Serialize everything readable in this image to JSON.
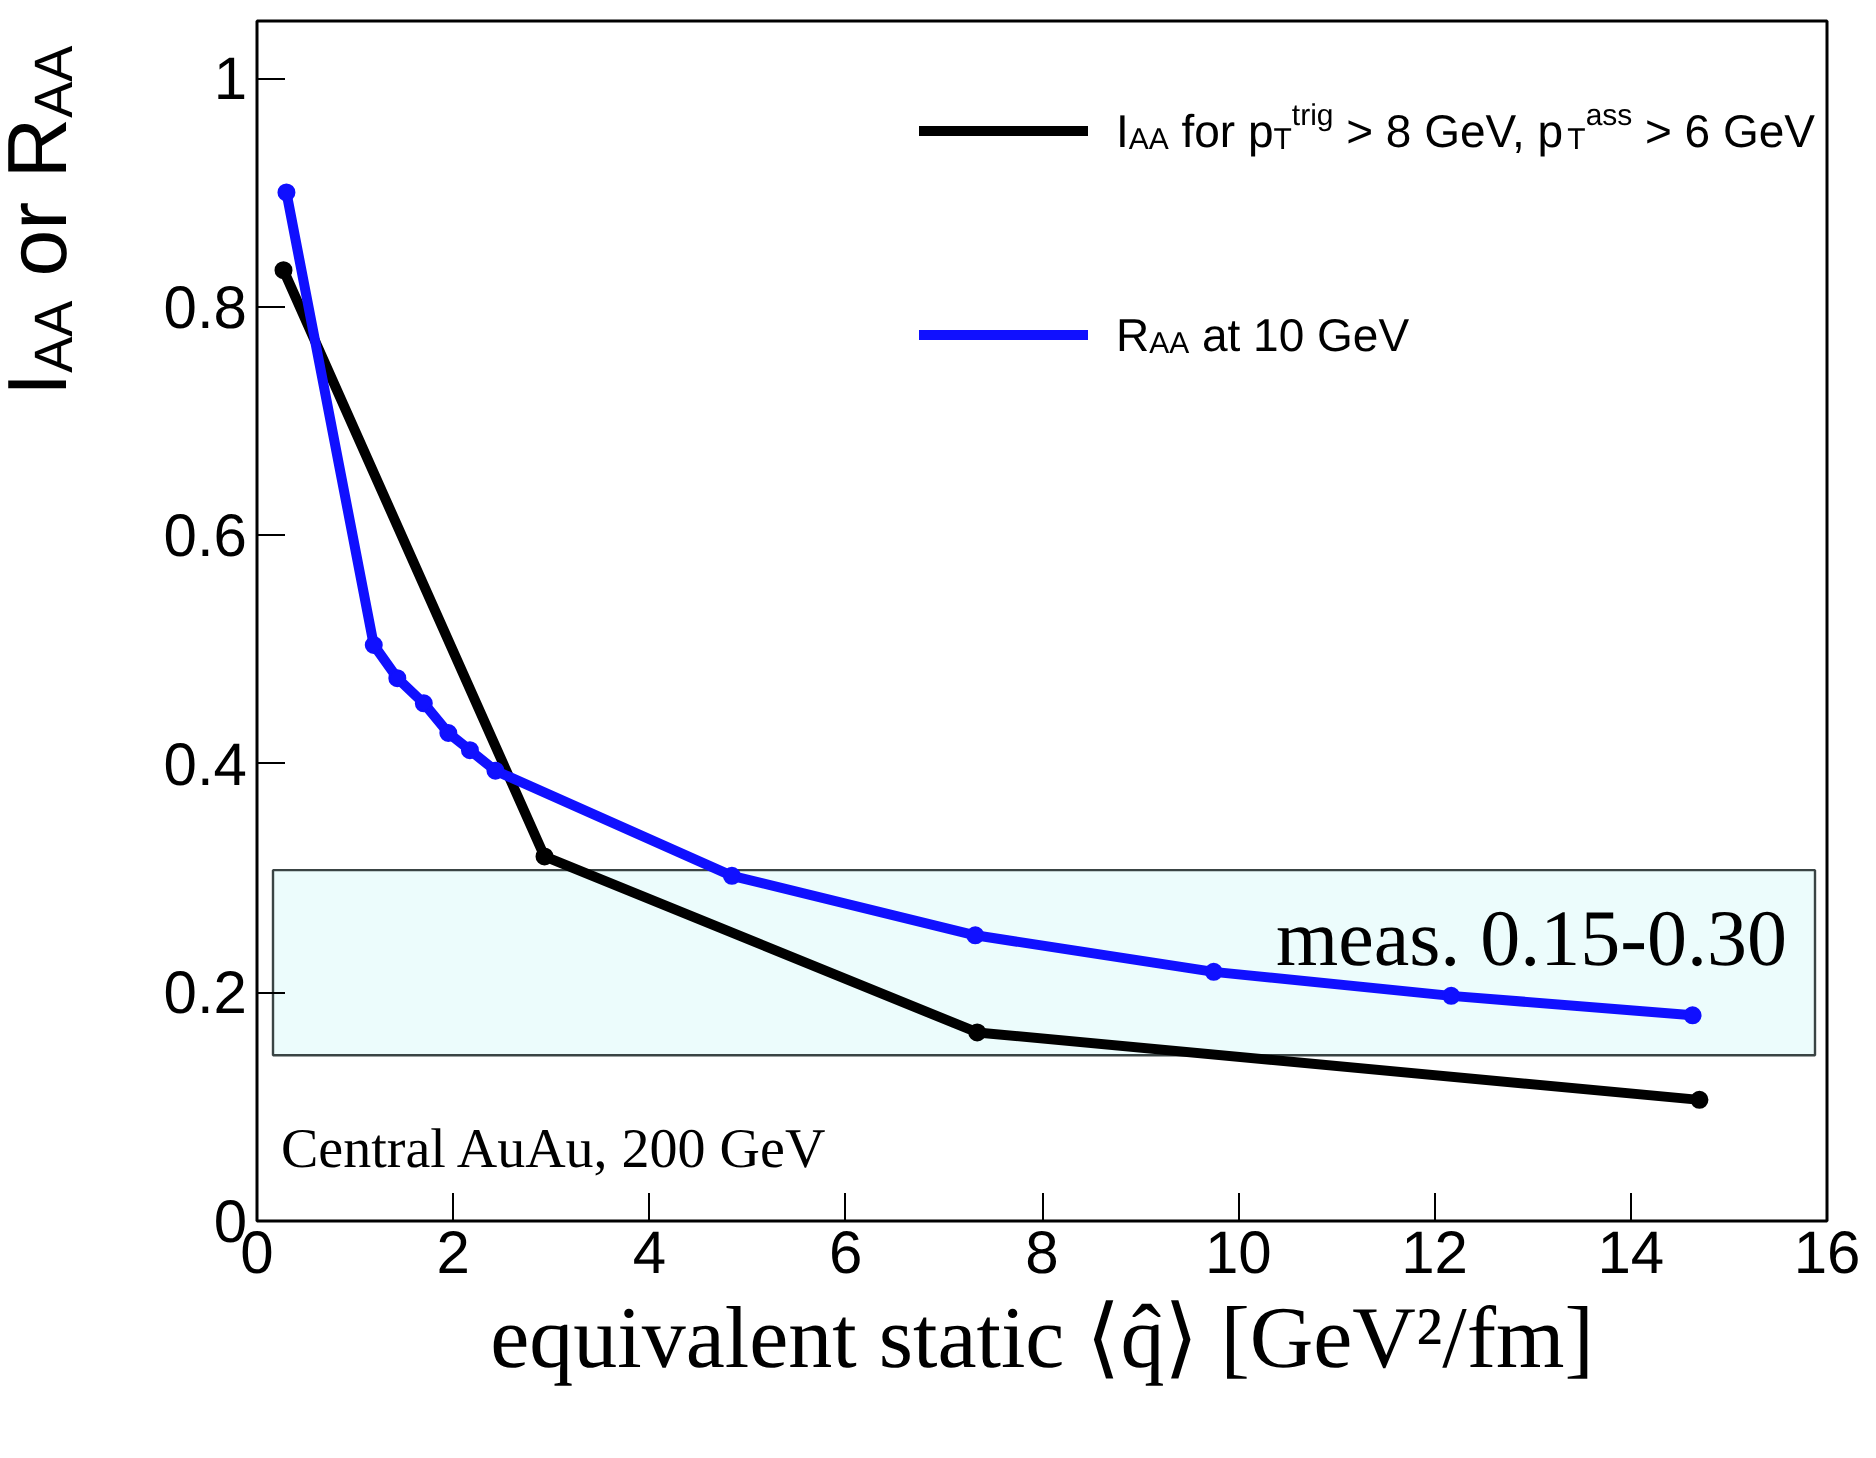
{
  "chart_data": {
    "type": "line",
    "xlabel": "equivalent static ⟨q̂⟩ [GeV²/fm]",
    "ylabel": "I$_{AA}$ or R$_{AA}$",
    "xlim": [
      0,
      16
    ],
    "xticks": [
      0,
      2,
      4,
      6,
      8,
      10,
      12,
      14,
      16
    ],
    "ylim": [
      0,
      1.05
    ],
    "yticks": [
      0,
      0.2,
      0.4,
      0.6,
      0.8,
      1
    ],
    "grid": false,
    "legend": "top right",
    "marker": "circle",
    "line_style": "solid",
    "series": [
      {
        "name": "I$_{AA}$ for p$_{T}$$^{trig}$ > 8 GeV, p$_{T}$$^{ass}$ > 6 GeV",
        "color": "#000000",
        "x": [
          0.27,
          2.93,
          7.34,
          14.7
        ],
        "values": [
          0.832,
          0.319,
          0.165,
          0.106
        ]
      },
      {
        "name": "R$_{AA}$ at 10 GeV",
        "color": "#1010ff",
        "x": [
          0.3,
          1.19,
          1.43,
          1.7,
          1.95,
          2.17,
          2.43,
          4.84,
          7.32,
          9.75,
          12.17,
          14.63
        ],
        "values": [
          0.9,
          0.504,
          0.475,
          0.453,
          0.427,
          0.412,
          0.394,
          0.302,
          0.25,
          0.218,
          0.197,
          0.18
        ]
      }
    ],
    "bands": [
      {
        "axis": "y",
        "from": 0.145,
        "to": 0.307,
        "label": "meas. 0.15-0.30",
        "color": "#ecfcfc"
      }
    ],
    "annotations": [
      "Central AuAu, 200 GeV"
    ]
  }
}
